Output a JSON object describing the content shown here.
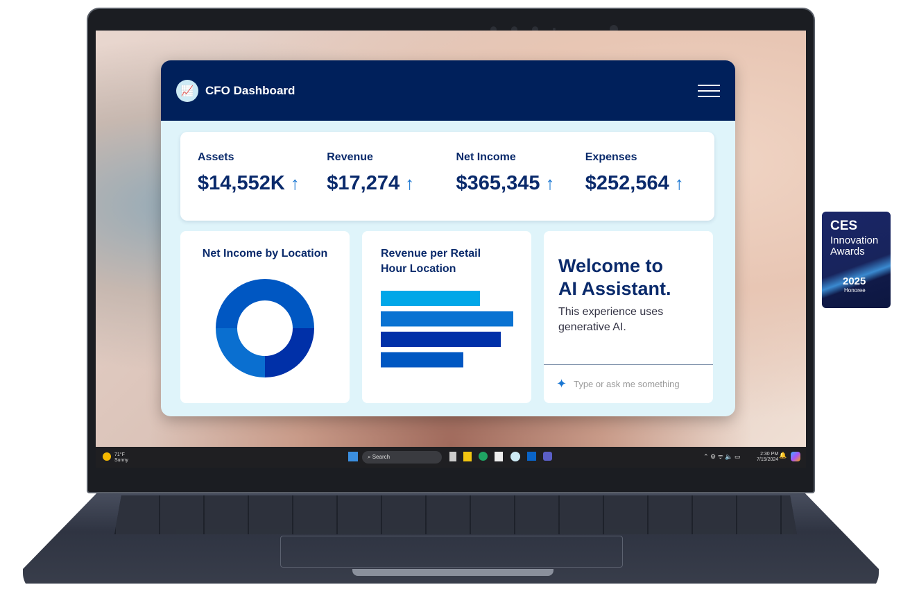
{
  "app": {
    "title": "CFO Dashboard",
    "logo_icon": "chart-growth-icon",
    "menu_icon": "hamburger-icon"
  },
  "kpis": [
    {
      "label": "Assets",
      "value": "$14,552K",
      "trend": "up"
    },
    {
      "label": "Revenue",
      "value": "$17,274",
      "trend": "up"
    },
    {
      "label": "Net Income",
      "value": "$365,345",
      "trend": "up"
    },
    {
      "label": "Expenses",
      "value": "$252,564",
      "trend": "up"
    }
  ],
  "kpi_arrow": "↑",
  "chart_data": [
    {
      "type": "pie",
      "title": "Net Income by Location",
      "donut": true,
      "values": [
        50,
        25,
        25
      ],
      "colors": [
        "#0057c2",
        "#0030a8",
        "#0a6fd0"
      ]
    },
    {
      "type": "bar",
      "title": "Revenue per Retail Hour Location",
      "orientation": "horizontal",
      "values": [
        143,
        191,
        173,
        119
      ],
      "colors": [
        "#00a7e8",
        "#0a73d2",
        "#0030a8",
        "#0057c2"
      ]
    }
  ],
  "assistant": {
    "heading": "Welcome to AI Assistant.",
    "subtitle": "This experience uses generative AI.",
    "placeholder": "Type or ask me something",
    "sparkle_icon": "sparkle-icon"
  },
  "taskbar": {
    "temp": "71°F",
    "weather": "Sunny",
    "search": "Search",
    "time": "2:30 PM",
    "date": "7/15/2024"
  },
  "badge": {
    "brand": "CES",
    "line1": "Innovation",
    "line2": "Awards",
    "year": "2025",
    "status": "Honoree"
  }
}
